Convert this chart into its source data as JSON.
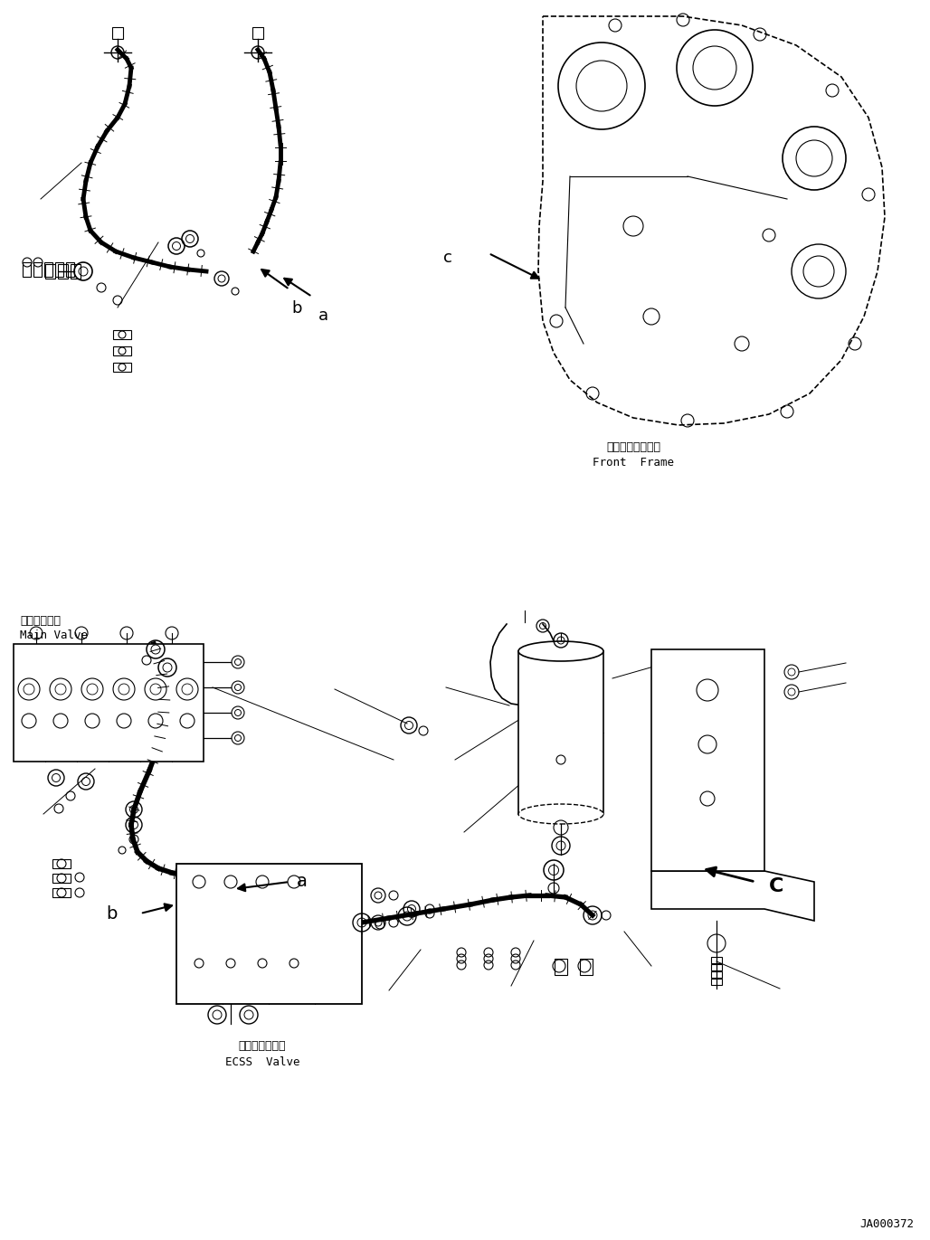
{
  "bg_color": "#ffffff",
  "line_color": "#000000",
  "fig_width": 10.28,
  "fig_height": 13.71,
  "dpi": 100,
  "watermark": "JA000372",
  "labels": {
    "front_frame_jp": "フロントフレーム",
    "front_frame_en": "Front  Frame",
    "main_valve_jp": "メインバルブ",
    "main_valve_en": "Main Valve",
    "ecss_valve_jp": "ＥＣＳＳバルブ",
    "ecss_valve_en": "ECSS  Valve"
  }
}
